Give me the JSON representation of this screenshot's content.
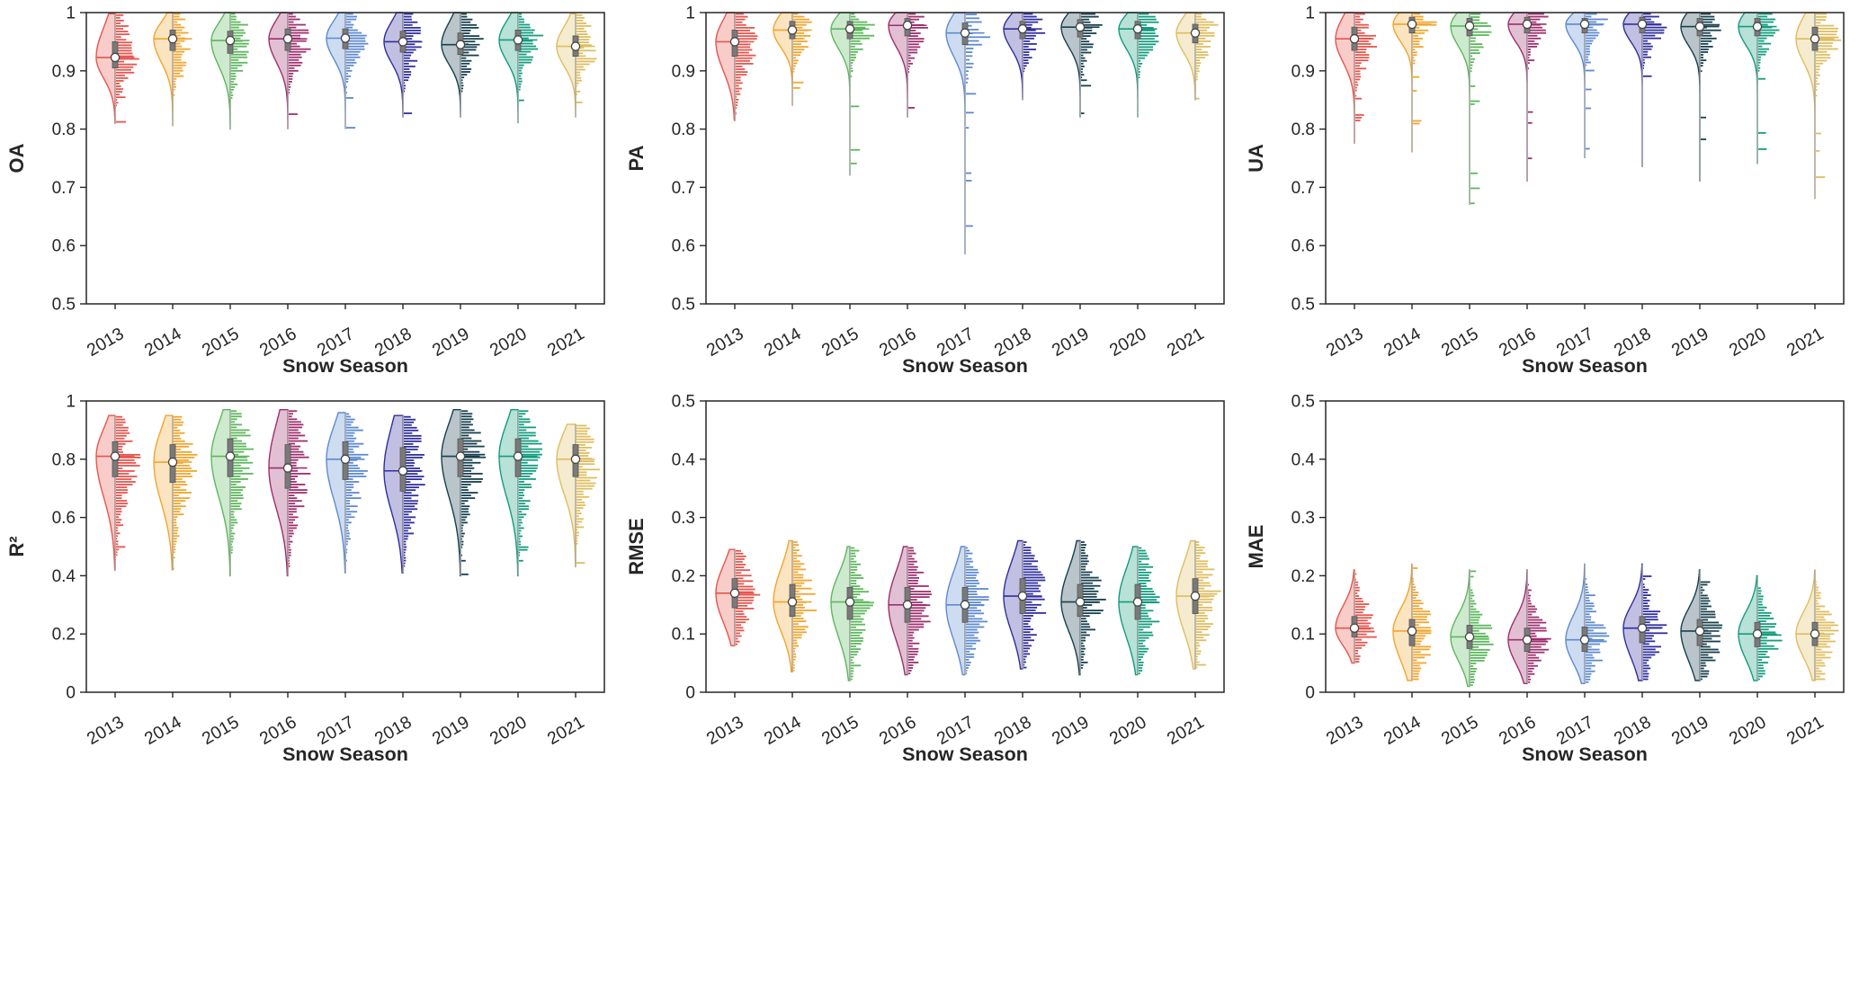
{
  "figure": {
    "layout": "2x3 grid of half-violin raincloud plots",
    "background": "#ffffff"
  },
  "style": {
    "palette": [
      "#e8554d",
      "#f2a52e",
      "#5cb85c",
      "#9e2f6e",
      "#5d8ad2",
      "#312f9e",
      "#16404e",
      "#139c7e",
      "#dfbd5f"
    ],
    "violin_fill_opacity": 0.3,
    "box_color": "#7a7a7a",
    "box_edge_color": "#555555",
    "whisker_color": "#999999",
    "median_marker_fill": "#ffffff",
    "median_marker_edge": "#444444",
    "axis_color": "#262626"
  },
  "chart_data": [
    {
      "type": "violin",
      "title": "",
      "ylabel": "OA",
      "xlabel": "Snow Season",
      "categories": [
        "2013",
        "2014",
        "2015",
        "2016",
        "2017",
        "2018",
        "2019",
        "2020",
        "2021"
      ],
      "ylim": [
        0.5,
        1
      ],
      "yticks": [
        0.5,
        0.6,
        0.7,
        0.8,
        0.9,
        1
      ],
      "grid": false,
      "legend": "none",
      "series": [
        {
          "year": "2013",
          "min": 0.81,
          "q1": 0.905,
          "median": 0.923,
          "q3": 0.95,
          "max": 0.998
        },
        {
          "year": "2014",
          "min": 0.805,
          "q1": 0.935,
          "median": 0.955,
          "q3": 0.97,
          "max": 1.0
        },
        {
          "year": "2015",
          "min": 0.8,
          "q1": 0.93,
          "median": 0.952,
          "q3": 0.968,
          "max": 1.0
        },
        {
          "year": "2016",
          "min": 0.8,
          "q1": 0.935,
          "median": 0.955,
          "q3": 0.972,
          "max": 1.0
        },
        {
          "year": "2017",
          "min": 0.8,
          "q1": 0.938,
          "median": 0.956,
          "q3": 0.972,
          "max": 1.0
        },
        {
          "year": "2018",
          "min": 0.82,
          "q1": 0.932,
          "median": 0.95,
          "q3": 0.968,
          "max": 1.0
        },
        {
          "year": "2019",
          "min": 0.82,
          "q1": 0.928,
          "median": 0.945,
          "q3": 0.965,
          "max": 1.0
        },
        {
          "year": "2020",
          "min": 0.81,
          "q1": 0.935,
          "median": 0.953,
          "q3": 0.97,
          "max": 1.0
        },
        {
          "year": "2021",
          "min": 0.82,
          "q1": 0.925,
          "median": 0.942,
          "q3": 0.96,
          "max": 0.998
        }
      ]
    },
    {
      "type": "violin",
      "title": "",
      "ylabel": "PA",
      "xlabel": "Snow Season",
      "categories": [
        "2013",
        "2014",
        "2015",
        "2016",
        "2017",
        "2018",
        "2019",
        "2020",
        "2021"
      ],
      "ylim": [
        0.5,
        1
      ],
      "yticks": [
        0.5,
        0.6,
        0.7,
        0.8,
        0.9,
        1
      ],
      "grid": false,
      "legend": "none",
      "series": [
        {
          "year": "2013",
          "min": 0.815,
          "q1": 0.925,
          "median": 0.95,
          "q3": 0.97,
          "max": 1.0
        },
        {
          "year": "2014",
          "min": 0.84,
          "q1": 0.955,
          "median": 0.97,
          "q3": 0.985,
          "max": 1.0
        },
        {
          "year": "2015",
          "min": 0.72,
          "q1": 0.955,
          "median": 0.972,
          "q3": 0.985,
          "max": 1.0
        },
        {
          "year": "2016",
          "min": 0.82,
          "q1": 0.96,
          "median": 0.978,
          "q3": 0.99,
          "max": 1.0
        },
        {
          "year": "2017",
          "min": 0.585,
          "q1": 0.945,
          "median": 0.965,
          "q3": 0.982,
          "max": 1.0
        },
        {
          "year": "2018",
          "min": 0.85,
          "q1": 0.955,
          "median": 0.972,
          "q3": 0.985,
          "max": 1.0
        },
        {
          "year": "2019",
          "min": 0.82,
          "q1": 0.958,
          "median": 0.975,
          "q3": 0.988,
          "max": 1.0
        },
        {
          "year": "2020",
          "min": 0.82,
          "q1": 0.955,
          "median": 0.972,
          "q3": 0.985,
          "max": 1.0
        },
        {
          "year": "2021",
          "min": 0.85,
          "q1": 0.948,
          "median": 0.965,
          "q3": 0.98,
          "max": 1.0
        }
      ]
    },
    {
      "type": "violin",
      "title": "",
      "ylabel": "UA",
      "xlabel": "Snow Season",
      "categories": [
        "2013",
        "2014",
        "2015",
        "2016",
        "2017",
        "2018",
        "2019",
        "2020",
        "2021"
      ],
      "ylim": [
        0.5,
        1
      ],
      "yticks": [
        0.5,
        0.6,
        0.7,
        0.8,
        0.9,
        1
      ],
      "grid": false,
      "legend": "none",
      "series": [
        {
          "year": "2013",
          "min": 0.775,
          "q1": 0.935,
          "median": 0.955,
          "q3": 0.975,
          "max": 1.0
        },
        {
          "year": "2014",
          "min": 0.76,
          "q1": 0.965,
          "median": 0.98,
          "q3": 0.992,
          "max": 1.0
        },
        {
          "year": "2015",
          "min": 0.67,
          "q1": 0.96,
          "median": 0.977,
          "q3": 0.99,
          "max": 1.0
        },
        {
          "year": "2016",
          "min": 0.71,
          "q1": 0.965,
          "median": 0.98,
          "q3": 0.992,
          "max": 1.0
        },
        {
          "year": "2017",
          "min": 0.75,
          "q1": 0.965,
          "median": 0.98,
          "q3": 0.99,
          "max": 1.0
        },
        {
          "year": "2018",
          "min": 0.735,
          "q1": 0.965,
          "median": 0.98,
          "q3": 0.992,
          "max": 1.0
        },
        {
          "year": "2019",
          "min": 0.71,
          "q1": 0.96,
          "median": 0.976,
          "q3": 0.99,
          "max": 1.0
        },
        {
          "year": "2020",
          "min": 0.74,
          "q1": 0.96,
          "median": 0.976,
          "q3": 0.99,
          "max": 1.0
        },
        {
          "year": "2021",
          "min": 0.68,
          "q1": 0.935,
          "median": 0.955,
          "q3": 0.975,
          "max": 1.0
        }
      ]
    },
    {
      "type": "violin",
      "title": "",
      "ylabel": "R²",
      "xlabel": "Snow Season",
      "categories": [
        "2013",
        "2014",
        "2015",
        "2016",
        "2017",
        "2018",
        "2019",
        "2020",
        "2021"
      ],
      "ylim": [
        0,
        1
      ],
      "yticks": [
        0,
        0.2,
        0.4,
        0.6,
        0.8,
        1
      ],
      "grid": false,
      "legend": "none",
      "series": [
        {
          "year": "2013",
          "min": 0.42,
          "q1": 0.74,
          "median": 0.81,
          "q3": 0.86,
          "max": 0.95
        },
        {
          "year": "2014",
          "min": 0.42,
          "q1": 0.72,
          "median": 0.79,
          "q3": 0.85,
          "max": 0.95
        },
        {
          "year": "2015",
          "min": 0.4,
          "q1": 0.74,
          "median": 0.81,
          "q3": 0.87,
          "max": 0.97
        },
        {
          "year": "2016",
          "min": 0.4,
          "q1": 0.7,
          "median": 0.77,
          "q3": 0.85,
          "max": 0.97
        },
        {
          "year": "2017",
          "min": 0.41,
          "q1": 0.73,
          "median": 0.8,
          "q3": 0.86,
          "max": 0.96
        },
        {
          "year": "2018",
          "min": 0.41,
          "q1": 0.69,
          "median": 0.76,
          "q3": 0.84,
          "max": 0.95
        },
        {
          "year": "2019",
          "min": 0.4,
          "q1": 0.74,
          "median": 0.81,
          "q3": 0.87,
          "max": 0.97
        },
        {
          "year": "2020",
          "min": 0.4,
          "q1": 0.74,
          "median": 0.81,
          "q3": 0.87,
          "max": 0.97
        },
        {
          "year": "2021",
          "min": 0.43,
          "q1": 0.74,
          "median": 0.8,
          "q3": 0.85,
          "max": 0.92
        }
      ]
    },
    {
      "type": "violin",
      "title": "",
      "ylabel": "RMSE",
      "xlabel": "Snow Season",
      "categories": [
        "2013",
        "2014",
        "2015",
        "2016",
        "2017",
        "2018",
        "2019",
        "2020",
        "2021"
      ],
      "ylim": [
        0,
        0.5
      ],
      "yticks": [
        0,
        0.1,
        0.2,
        0.3,
        0.4,
        0.5
      ],
      "grid": false,
      "legend": "none",
      "series": [
        {
          "year": "2013",
          "min": 0.08,
          "q1": 0.145,
          "median": 0.17,
          "q3": 0.195,
          "max": 0.245
        },
        {
          "year": "2014",
          "min": 0.035,
          "q1": 0.13,
          "median": 0.155,
          "q3": 0.185,
          "max": 0.26
        },
        {
          "year": "2015",
          "min": 0.02,
          "q1": 0.125,
          "median": 0.155,
          "q3": 0.18,
          "max": 0.25
        },
        {
          "year": "2016",
          "min": 0.03,
          "q1": 0.12,
          "median": 0.15,
          "q3": 0.18,
          "max": 0.25
        },
        {
          "year": "2017",
          "min": 0.03,
          "q1": 0.12,
          "median": 0.15,
          "q3": 0.18,
          "max": 0.25
        },
        {
          "year": "2018",
          "min": 0.04,
          "q1": 0.135,
          "median": 0.165,
          "q3": 0.195,
          "max": 0.26
        },
        {
          "year": "2019",
          "min": 0.03,
          "q1": 0.13,
          "median": 0.155,
          "q3": 0.185,
          "max": 0.26
        },
        {
          "year": "2020",
          "min": 0.03,
          "q1": 0.125,
          "median": 0.155,
          "q3": 0.185,
          "max": 0.25
        },
        {
          "year": "2021",
          "min": 0.04,
          "q1": 0.135,
          "median": 0.165,
          "q3": 0.195,
          "max": 0.26
        }
      ]
    },
    {
      "type": "violin",
      "title": "",
      "ylabel": "MAE",
      "xlabel": "Snow Season",
      "categories": [
        "2013",
        "2014",
        "2015",
        "2016",
        "2017",
        "2018",
        "2019",
        "2020",
        "2021"
      ],
      "ylim": [
        0,
        0.5
      ],
      "yticks": [
        0,
        0.1,
        0.2,
        0.3,
        0.4,
        0.5
      ],
      "grid": false,
      "legend": "none",
      "series": [
        {
          "year": "2013",
          "min": 0.05,
          "q1": 0.095,
          "median": 0.11,
          "q3": 0.13,
          "max": 0.21
        },
        {
          "year": "2014",
          "min": 0.02,
          "q1": 0.08,
          "median": 0.105,
          "q3": 0.125,
          "max": 0.22
        },
        {
          "year": "2015",
          "min": 0.01,
          "q1": 0.075,
          "median": 0.095,
          "q3": 0.115,
          "max": 0.21
        },
        {
          "year": "2016",
          "min": 0.015,
          "q1": 0.07,
          "median": 0.09,
          "q3": 0.11,
          "max": 0.21
        },
        {
          "year": "2017",
          "min": 0.015,
          "q1": 0.07,
          "median": 0.09,
          "q3": 0.112,
          "max": 0.22
        },
        {
          "year": "2018",
          "min": 0.02,
          "q1": 0.085,
          "median": 0.11,
          "q3": 0.13,
          "max": 0.22
        },
        {
          "year": "2019",
          "min": 0.02,
          "q1": 0.08,
          "median": 0.105,
          "q3": 0.125,
          "max": 0.21
        },
        {
          "year": "2020",
          "min": 0.02,
          "q1": 0.078,
          "median": 0.1,
          "q3": 0.12,
          "max": 0.2
        },
        {
          "year": "2021",
          "min": 0.02,
          "q1": 0.08,
          "median": 0.1,
          "q3": 0.12,
          "max": 0.21
        }
      ]
    }
  ]
}
